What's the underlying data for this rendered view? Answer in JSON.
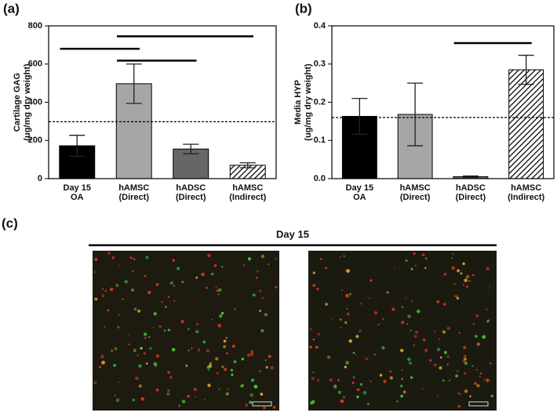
{
  "chart_data": [
    {
      "type": "bar",
      "panel_label": "(a)",
      "ylabel": [
        "Cartilage GAG",
        "(ug/mg dry weight)"
      ],
      "categories": [
        [
          "Day 15",
          "OA"
        ],
        [
          "hAMSC",
          "(Direct)"
        ],
        [
          "hADSC",
          "(Direct)"
        ],
        [
          "hAMSC",
          "(Indirect)"
        ]
      ],
      "values": [
        172,
        497,
        155,
        70
      ],
      "errors": [
        55,
        103,
        25,
        13
      ],
      "colors": [
        "#000000",
        "#a6a6a6",
        "#666666",
        "#ffffff"
      ],
      "hatched_index": 3,
      "reference_line": 298,
      "significance": [
        {
          "from": 0,
          "to": 1,
          "y": 680
        },
        {
          "from": 1,
          "to": 2,
          "y": 618
        },
        {
          "from": 1,
          "to": 3,
          "y": 745
        }
      ],
      "ylim": [
        0,
        800
      ],
      "yticks": [
        0,
        200,
        400,
        600,
        800
      ]
    },
    {
      "type": "bar",
      "panel_label": "(b)",
      "ylabel": [
        "Media HYP",
        "(ug/mg dry weight)"
      ],
      "categories": [
        [
          "Day 15",
          "OA"
        ],
        [
          "hAMSC",
          "(Direct)"
        ],
        [
          "hADSC",
          "(Direct)"
        ],
        [
          "hAMSC",
          "(Indirect)"
        ]
      ],
      "values": [
        0.163,
        0.168,
        0.005,
        0.285
      ],
      "errors": [
        0.047,
        0.082,
        0.002,
        0.038
      ],
      "colors": [
        "#000000",
        "#a6a6a6",
        "#666666",
        "#ffffff"
      ],
      "hatched_index": 3,
      "reference_line": 0.16,
      "significance": [
        {
          "from": 2,
          "to": 3,
          "y": 0.355
        }
      ],
      "ylim": [
        0,
        0.4
      ],
      "yticks": [
        {
          "value": 0,
          "label": "0.0"
        },
        0.1,
        0.2,
        0.3,
        0.4
      ]
    }
  ],
  "panel_c": {
    "label": "(c)",
    "title": "Day 15"
  }
}
